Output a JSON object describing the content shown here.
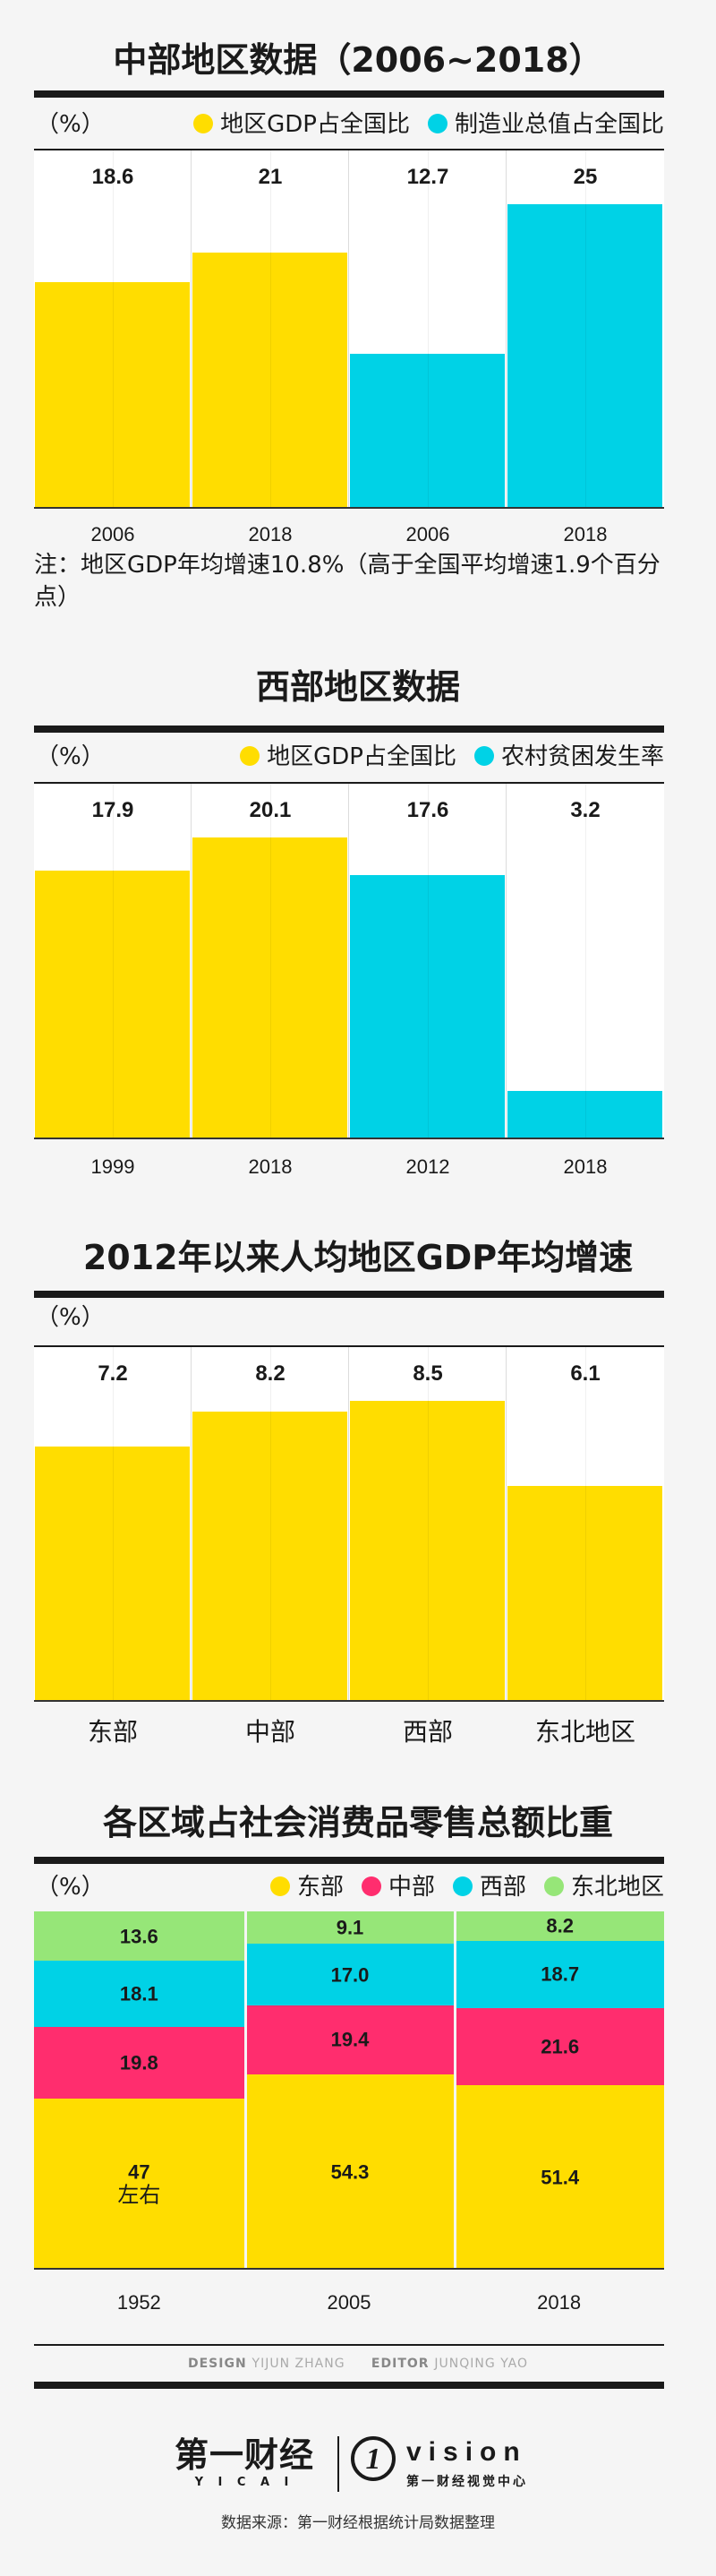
{
  "colors": {
    "yellow": "#FFDD00",
    "cyan": "#00D2E6",
    "pink": "#FF2D6E",
    "green": "#96E678",
    "rule": "#1a1a1a"
  },
  "chart_data": [
    {
      "type": "bar",
      "title": "中部地区数据（2006~2018）",
      "unit": "（%）",
      "legend": [
        {
          "label": "地区GDP占全国比",
          "color": "#FFDD00"
        },
        {
          "label": "制造业总值占全国比",
          "color": "#00D2E6"
        }
      ],
      "categories": [
        "2006",
        "2018",
        "2006",
        "2018"
      ],
      "values": [
        18.6,
        21,
        12.7,
        25
      ],
      "value_labels": [
        "18.6",
        "21",
        "12.7",
        "25"
      ],
      "series_index": [
        0,
        0,
        1,
        1
      ],
      "ylim": [
        0,
        30
      ],
      "note": "注：地区GDP年均增速10.8%（高于全国平均增速1.9个百分点）"
    },
    {
      "type": "bar",
      "title": "西部地区数据",
      "unit": "（%）",
      "legend": [
        {
          "label": "地区GDP占全国比",
          "color": "#FFDD00"
        },
        {
          "label": "农村贫困发生率",
          "color": "#00D2E6"
        }
      ],
      "categories": [
        "1999",
        "2018",
        "2012",
        "2018"
      ],
      "values": [
        17.9,
        20.1,
        17.6,
        3.2
      ],
      "value_labels": [
        "17.9",
        "20.1",
        "17.6",
        "3.2"
      ],
      "series_index": [
        0,
        0,
        1,
        1
      ],
      "ylim": [
        0,
        25
      ]
    },
    {
      "type": "bar",
      "title": "2012年以来人均地区GDP年均增速",
      "unit": "（%）",
      "legend": [],
      "categories": [
        "东部",
        "中部",
        "西部",
        "东北地区"
      ],
      "values": [
        7.2,
        8.2,
        8.5,
        6.1
      ],
      "value_labels": [
        "7.2",
        "8.2",
        "8.5",
        "6.1"
      ],
      "series_index": [
        0,
        0,
        0,
        0
      ],
      "ylim": [
        0,
        10
      ]
    },
    {
      "type": "bar",
      "stacked": true,
      "title": "各区域占社会消费品零售总额比重",
      "unit": "（%）",
      "categories": [
        "1952",
        "2005",
        "2018"
      ],
      "series": [
        {
          "name": "东部",
          "color": "#FFDD00",
          "values": [
            47,
            54.3,
            51.4
          ],
          "labels": [
            "47",
            "54.3",
            "51.4"
          ]
        },
        {
          "name": "中部",
          "color": "#FF2D6E",
          "values": [
            19.8,
            19.4,
            21.6
          ],
          "labels": [
            "19.8",
            "19.4",
            "21.6"
          ]
        },
        {
          "name": "西部",
          "color": "#00D2E6",
          "values": [
            18.1,
            17.0,
            18.7
          ],
          "labels": [
            "18.1",
            "17.0",
            "18.7"
          ]
        },
        {
          "name": "东北地区",
          "color": "#96E678",
          "values": [
            13.6,
            9.1,
            8.2
          ],
          "labels": [
            "13.6",
            "9.1",
            "8.2"
          ]
        }
      ],
      "first_bar_sublabel": "左右",
      "ylim": [
        0,
        100
      ]
    }
  ],
  "credits": {
    "design_label": "DESIGN",
    "designer": "YIJUN ZHANG",
    "editor_label": "EDITOR",
    "editor": "JUNQING YAO"
  },
  "footer": {
    "brand_cn": "第一财经",
    "brand_pinyin": "Y I C A I",
    "vision_mark": "1",
    "vision_text": "vision",
    "vision_sub": "第一财经视觉中心",
    "source": "数据来源：第一财经根据统计局数据整理"
  }
}
